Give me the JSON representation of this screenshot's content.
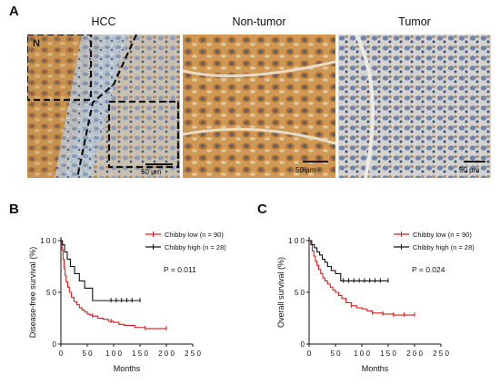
{
  "figure": {
    "panel_a_label": "A",
    "panel_b_label": "B",
    "panel_c_label": "C",
    "images": [
      {
        "title": "HCC",
        "region_label": "N",
        "scale_bar": "50 μm"
      },
      {
        "title": "Non-tumor",
        "scale_bar": "50 μm"
      },
      {
        "title": "Tumor",
        "scale_bar": "50 μm"
      }
    ]
  },
  "colors": {
    "low": "#d91c1c",
    "high": "#111111",
    "stain_brown": "#b07a3c",
    "stain_blue": "#7a94b8"
  },
  "chart_data": [
    {
      "type": "line",
      "step": true,
      "xlabel": "Months",
      "ylabel": "Disease-free survival (%)",
      "xlim": [
        0,
        250
      ],
      "ylim": [
        0,
        100
      ],
      "x_ticks": [
        0,
        50,
        100,
        150,
        200,
        250
      ],
      "y_ticks": [
        0,
        50,
        100
      ],
      "x_tick_labels": [
        "0",
        "5 0",
        "1 0 0",
        "1 5 0",
        "2 0 0",
        "2 5 0"
      ],
      "y_tick_labels": [
        "0",
        "5 0",
        "1 0 0"
      ],
      "p_label": "P = 0.011",
      "legend_position": "top-right",
      "series": [
        {
          "name": "Chibby low (n = 90)",
          "x": [
            0,
            2,
            4,
            6,
            8,
            10,
            13,
            16,
            20,
            25,
            30,
            35,
            40,
            45,
            50,
            55,
            60,
            70,
            80,
            90,
            100,
            110,
            120,
            140,
            160,
            200
          ],
          "y": [
            100,
            91,
            82,
            73,
            66,
            60,
            55,
            50,
            45,
            41,
            38,
            35,
            33,
            31,
            29,
            28,
            27,
            25,
            24,
            22,
            21,
            19,
            18,
            16,
            15,
            15
          ],
          "censor_x": [
            60,
            95,
            160,
            200
          ]
        },
        {
          "name": "Chibby high (n = 28)",
          "x": [
            0,
            3,
            7,
            12,
            18,
            26,
            35,
            45,
            60,
            150
          ],
          "y": [
            100,
            96,
            89,
            82,
            75,
            68,
            61,
            54,
            42,
            42
          ],
          "censor_x": [
            95,
            105,
            115,
            125,
            135,
            150
          ]
        }
      ]
    },
    {
      "type": "line",
      "step": true,
      "xlabel": "Months",
      "ylabel": "Overall survival (%)",
      "xlim": [
        0,
        250
      ],
      "ylim": [
        0,
        100
      ],
      "x_ticks": [
        0,
        50,
        100,
        150,
        200,
        250
      ],
      "y_ticks": [
        0,
        50,
        100
      ],
      "x_tick_labels": [
        "0",
        "5 0",
        "1 0 0",
        "1 5 0",
        "2 0 0",
        "2 5 0"
      ],
      "y_tick_labels": [
        "0",
        "5 0",
        "1 0 0"
      ],
      "p_label": "P = 0.024",
      "legend_position": "top-right",
      "series": [
        {
          "name": "Chibby low (n = 90)",
          "x": [
            0,
            3,
            6,
            9,
            12,
            15,
            18,
            22,
            26,
            30,
            35,
            40,
            45,
            50,
            56,
            62,
            70,
            80,
            90,
            100,
            110,
            120,
            140,
            160,
            200
          ],
          "y": [
            100,
            96,
            90,
            85,
            80,
            76,
            72,
            68,
            64,
            61,
            58,
            55,
            52,
            50,
            47,
            44,
            40,
            37,
            35,
            34,
            32,
            30,
            29,
            28,
            28
          ],
          "censor_x": [
            80,
            120,
            140,
            160,
            180,
            200
          ]
        },
        {
          "name": "Chibby high (n = 28)",
          "x": [
            0,
            5,
            10,
            15,
            20,
            25,
            30,
            35,
            42,
            50,
            60,
            150
          ],
          "y": [
            100,
            96,
            93,
            89,
            86,
            82,
            79,
            75,
            71,
            68,
            61,
            61
          ],
          "censor_x": [
            65,
            75,
            85,
            95,
            105,
            115,
            125,
            135,
            150
          ]
        }
      ]
    }
  ]
}
